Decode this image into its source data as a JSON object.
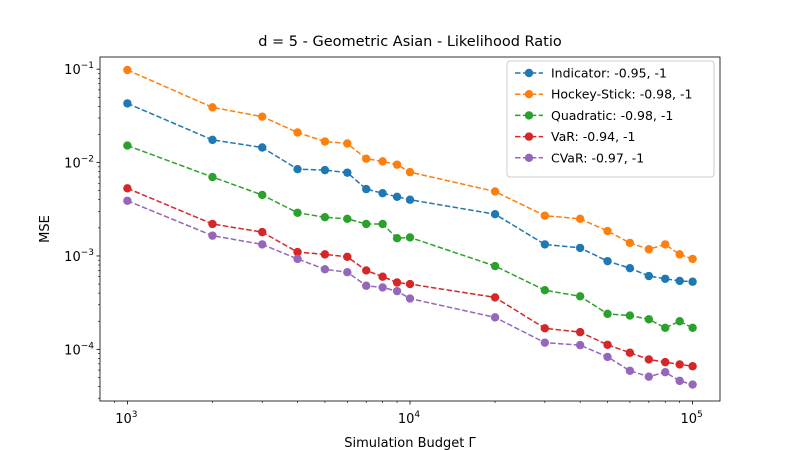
{
  "chart_data": {
    "type": "line",
    "title": "d = 5 - Geometric Asian - Likelihood Ratio",
    "xlabel": "Simulation Budget Γ",
    "ylabel": "MSE",
    "xscale": "log",
    "yscale": "log",
    "xlim": [
      800,
      125000
    ],
    "ylim": [
      2.8e-05,
      0.135
    ],
    "x_ticks": [
      {
        "value": 1000,
        "base": "10",
        "exp": "3"
      },
      {
        "value": 10000,
        "base": "10",
        "exp": "4"
      },
      {
        "value": 100000,
        "base": "10",
        "exp": "5"
      }
    ],
    "y_ticks": [
      {
        "value": 0.0001,
        "base": "10",
        "exp": "−4"
      },
      {
        "value": 0.001,
        "base": "10",
        "exp": "−3"
      },
      {
        "value": 0.01,
        "base": "10",
        "exp": "−2"
      },
      {
        "value": 0.1,
        "base": "10",
        "exp": "−1"
      }
    ],
    "grid": false,
    "legend_position": "top-right",
    "line_style": "dashed",
    "marker": "circle",
    "x": [
      1000,
      2000,
      3000,
      4000,
      5000,
      6000,
      7000,
      8000,
      9000,
      10000,
      20000,
      30000,
      40000,
      50000,
      60000,
      70000,
      80000,
      90000,
      100000
    ],
    "series": [
      {
        "name": "Indicator: -0.95, -1",
        "color": "#1f77b4",
        "values": [
          0.043,
          0.0175,
          0.0145,
          0.0085,
          0.0083,
          0.0078,
          0.0052,
          0.0047,
          0.0043,
          0.004,
          0.0028,
          0.00133,
          0.00122,
          0.00088,
          0.00074,
          0.00061,
          0.00057,
          0.00054,
          0.00053
        ]
      },
      {
        "name": "Hockey-Stick: -0.98, -1",
        "color": "#ff7f0e",
        "values": [
          0.098,
          0.039,
          0.031,
          0.021,
          0.0168,
          0.016,
          0.011,
          0.0103,
          0.0095,
          0.0079,
          0.0049,
          0.0027,
          0.0025,
          0.00185,
          0.00138,
          0.00118,
          0.00133,
          0.00104,
          0.00093
        ]
      },
      {
        "name": "Quadratic: -0.98, -1",
        "color": "#2ca02c",
        "values": [
          0.0152,
          0.007,
          0.0045,
          0.0029,
          0.0026,
          0.0025,
          0.0022,
          0.0022,
          0.00155,
          0.00158,
          0.00078,
          0.00043,
          0.00037,
          0.00024,
          0.00023,
          0.00021,
          0.00017,
          0.0002,
          0.00017
        ]
      },
      {
        "name": "VaR: -0.94, -1",
        "color": "#d62728",
        "values": [
          0.0053,
          0.0022,
          0.0018,
          0.0011,
          0.00104,
          0.00098,
          0.0007,
          0.0006,
          0.00052,
          0.0005,
          0.00036,
          0.000168,
          0.000153,
          0.000112,
          9.2e-05,
          7.8e-05,
          7.3e-05,
          6.9e-05,
          6.6e-05
        ]
      },
      {
        "name": "CVaR: -0.97, -1",
        "color": "#9467bd",
        "values": [
          0.0039,
          0.00165,
          0.00133,
          0.00093,
          0.00072,
          0.00067,
          0.00048,
          0.00046,
          0.00042,
          0.00035,
          0.00022,
          0.000118,
          0.000111,
          8.3e-05,
          5.9e-05,
          5.1e-05,
          5.7e-05,
          4.6e-05,
          4.2e-05
        ]
      }
    ]
  }
}
